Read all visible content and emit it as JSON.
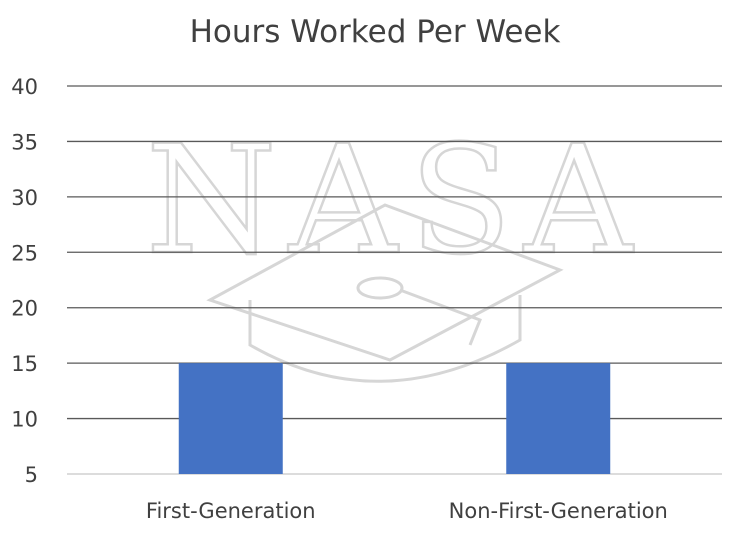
{
  "chart_data": {
    "type": "bar",
    "title": "Hours Worked Per Week",
    "categories": [
      "First-Generation",
      "Non-First-Generation"
    ],
    "values": [
      15,
      15
    ],
    "xlabel": "",
    "ylabel": "",
    "ylim": [
      5,
      40
    ],
    "yticks": [
      5,
      10,
      15,
      20,
      25,
      30,
      35,
      40
    ],
    "grid": true,
    "legend": "none",
    "bar_color": "#4472C4",
    "gridline_color": "#595959"
  },
  "watermark": {
    "text": "NASA",
    "icon": "graduation-cap-icon",
    "color": "#d0d0d0"
  }
}
